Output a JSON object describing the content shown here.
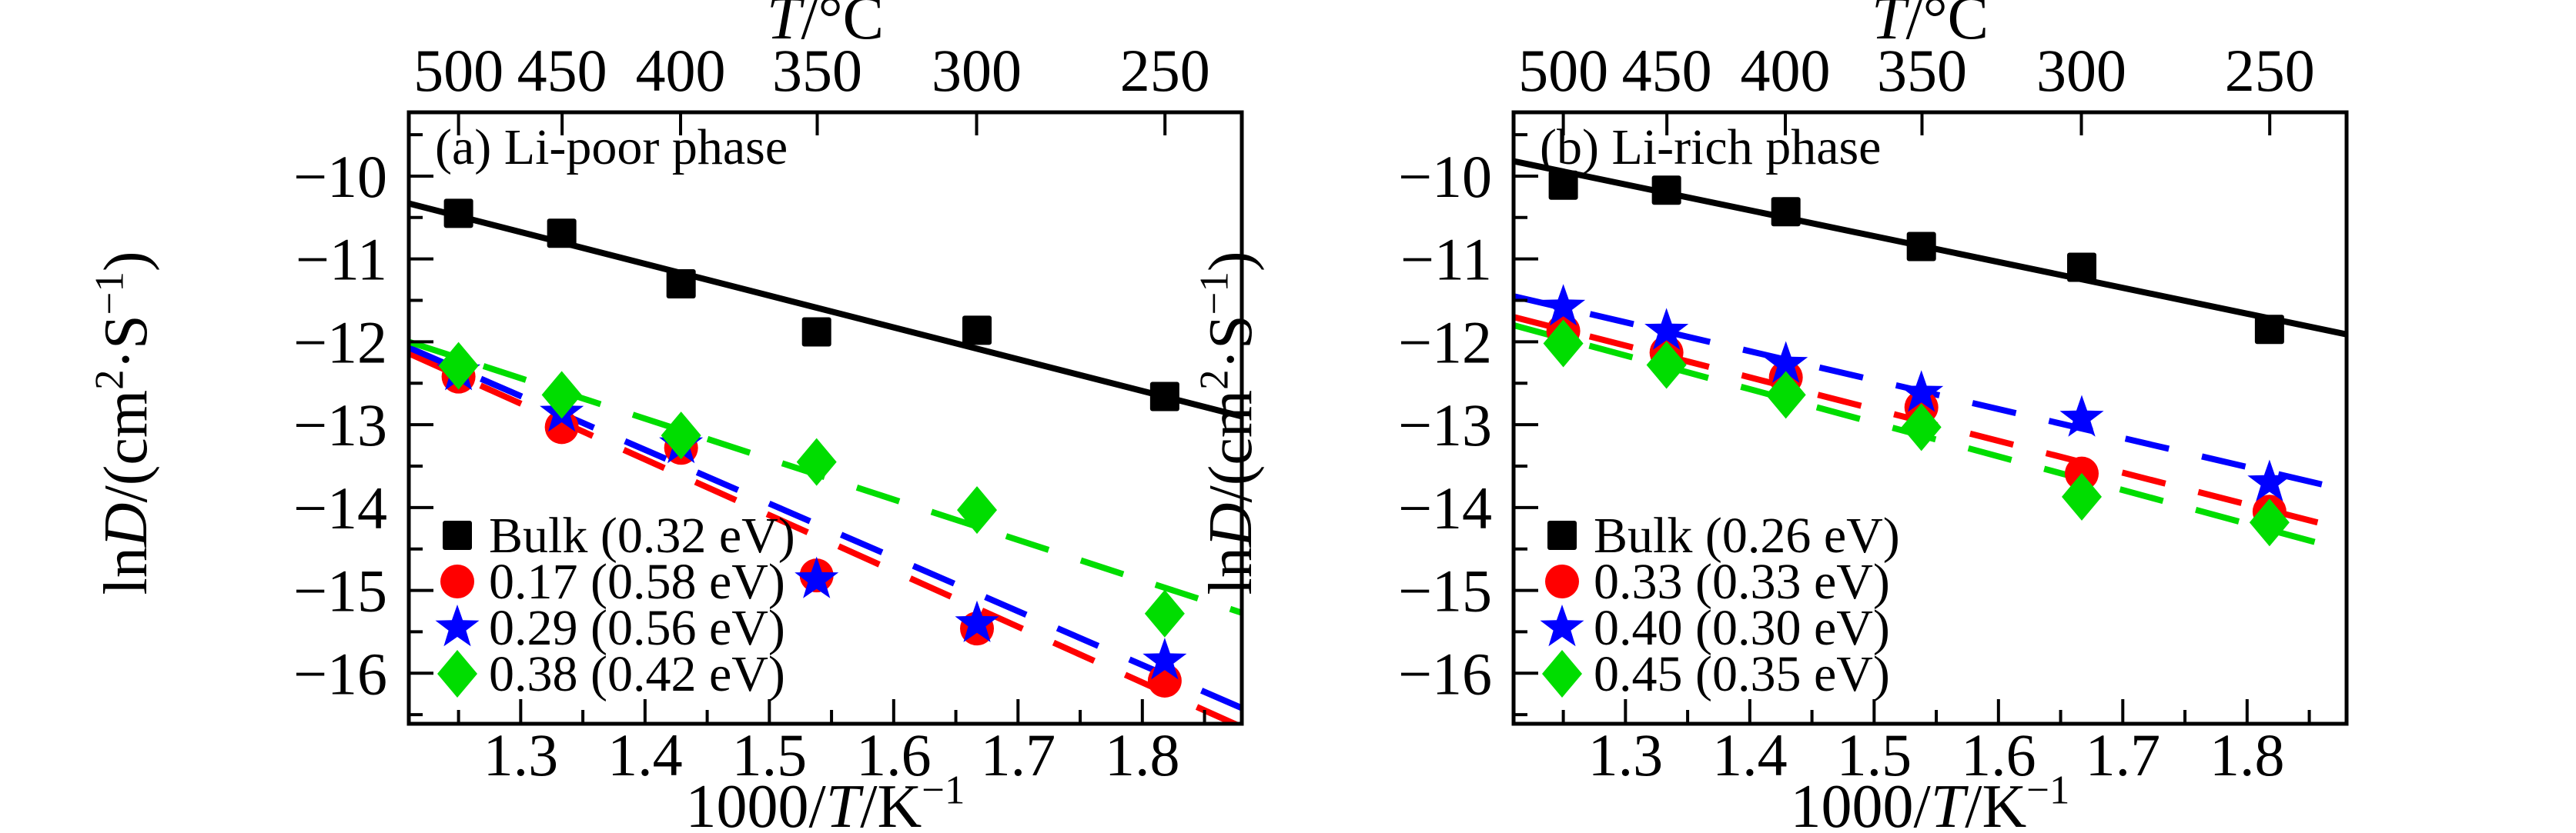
{
  "figure": {
    "description": "Arrhenius plots of Li diffusion coefficients",
    "background": "#ffffff",
    "frame_color": "#000000"
  },
  "axes": {
    "xlim": [
      1.21,
      1.88
    ],
    "ylim": [
      -16.61,
      -9.23
    ],
    "x_major": [
      {
        "v": 1.3,
        "label": "1.3"
      },
      {
        "v": 1.4,
        "label": "1.4"
      },
      {
        "v": 1.5,
        "label": "1.5"
      },
      {
        "v": 1.6,
        "label": "1.6"
      },
      {
        "v": 1.7,
        "label": "1.7"
      },
      {
        "v": 1.8,
        "label": "1.8"
      }
    ],
    "x_minor": [
      1.25,
      1.35,
      1.45,
      1.55,
      1.65,
      1.75,
      1.85
    ],
    "y_major": [
      {
        "v": -10,
        "label": "−10"
      },
      {
        "v": -11,
        "label": "−11"
      },
      {
        "v": -12,
        "label": "−12"
      },
      {
        "v": -13,
        "label": "−13"
      },
      {
        "v": -14,
        "label": "−14"
      },
      {
        "v": -15,
        "label": "−15"
      },
      {
        "v": -16,
        "label": "−16"
      }
    ],
    "y_minor": [
      -9.5,
      -10.5,
      -11.5,
      -12.5,
      -13.5,
      -14.5,
      -15.5,
      -16.5
    ],
    "top_ticks": [
      {
        "label": "500",
        "x": 1.25
      },
      {
        "label": "450",
        "x": 1.3333
      },
      {
        "label": "400",
        "x": 1.4286
      },
      {
        "label": "350",
        "x": 1.5385
      },
      {
        "label": "300",
        "x": 1.6667
      },
      {
        "label": "250",
        "x": 1.8182
      }
    ],
    "xlabel_segments": [
      {
        "t": "1000/"
      },
      {
        "t": "T",
        "i": 1
      },
      {
        "t": "/K"
      },
      {
        "t": "−1",
        "sup": 1
      }
    ],
    "ylabel_segments": [
      {
        "t": "ln"
      },
      {
        "t": "D",
        "i": 1
      },
      {
        "t": "/(cm"
      },
      {
        "t": "2",
        "sup": 1
      },
      {
        "t": "·S"
      },
      {
        "t": "−1",
        "sup": 1
      },
      {
        "t": ")"
      }
    ],
    "top_label_segments": [
      {
        "t": "T",
        "i": 1
      },
      {
        "t": "/°C"
      }
    ]
  },
  "chart_data": [
    {
      "type": "scatter",
      "panel_title": "(a) Li-poor phase",
      "x": [
        1.25,
        1.333,
        1.429,
        1.538,
        1.667,
        1.818
      ],
      "series": [
        {
          "name": "Bulk (0.32 eV)",
          "marker": "square",
          "color": "#000000",
          "line": "solid",
          "values": [
            -10.45,
            -10.69,
            -11.3,
            -11.88,
            -11.86,
            -12.66
          ],
          "fit": {
            "x1": 1.21,
            "y1": -10.33,
            "x2": 1.88,
            "y2": -12.9
          }
        },
        {
          "name": "0.17 (0.58 eV)",
          "marker": "circle",
          "color": "#ff0000",
          "line": "dashed",
          "values": [
            -12.42,
            -13.03,
            -13.28,
            -14.82,
            -15.46,
            -16.09
          ],
          "fit": {
            "x1": 1.21,
            "y1": -12.14,
            "x2": 1.88,
            "y2": -16.65
          }
        },
        {
          "name": "0.29 (0.56 eV)",
          "marker": "star",
          "color": "#0000ff",
          "line": "dashed",
          "values": [
            -12.36,
            -12.86,
            -13.24,
            -14.87,
            -15.4,
            -15.85
          ],
          "fit": {
            "x1": 1.21,
            "y1": -12.07,
            "x2": 1.88,
            "y2": -16.42
          }
        },
        {
          "name": "0.38 (0.42 eV)",
          "marker": "diamond",
          "color": "#00dd00",
          "line": "dashed",
          "values": [
            -12.29,
            -12.64,
            -13.13,
            -13.45,
            -14.03,
            -15.28
          ],
          "fit": {
            "x1": 1.21,
            "y1": -12.0,
            "x2": 1.88,
            "y2": -15.27
          }
        }
      ]
    },
    {
      "type": "scatter",
      "panel_title": "(b) Li-rich phase",
      "x": [
        1.25,
        1.333,
        1.429,
        1.538,
        1.667,
        1.818
      ],
      "series": [
        {
          "name": "Bulk (0.26 eV)",
          "marker": "square",
          "color": "#000000",
          "line": "solid",
          "values": [
            -10.11,
            -10.17,
            -10.43,
            -10.85,
            -11.1,
            -11.85
          ],
          "fit": {
            "x1": 1.21,
            "y1": -9.82,
            "x2": 1.88,
            "y2": -11.91
          }
        },
        {
          "name": "0.33 (0.33 eV)",
          "marker": "circle",
          "color": "#ff0000",
          "line": "dashed",
          "values": [
            -11.87,
            -12.13,
            -12.43,
            -12.79,
            -13.59,
            -14.05
          ],
          "fit": {
            "x1": 1.21,
            "y1": -11.7,
            "x2": 1.88,
            "y2": -14.27
          }
        },
        {
          "name": "0.40 (0.30 eV)",
          "marker": "star",
          "color": "#0000ff",
          "line": "dashed",
          "values": [
            -11.58,
            -11.87,
            -12.27,
            -12.62,
            -12.92,
            -13.7
          ],
          "fit": {
            "x1": 1.21,
            "y1": -11.45,
            "x2": 1.88,
            "y2": -13.79
          }
        },
        {
          "name": "0.45 (0.35 eV)",
          "marker": "diamond",
          "color": "#00dd00",
          "line": "dashed",
          "values": [
            -12.02,
            -12.28,
            -12.64,
            -13.03,
            -13.87,
            -14.18
          ],
          "fit": {
            "x1": 1.21,
            "y1": -11.8,
            "x2": 1.88,
            "y2": -14.52
          }
        }
      ]
    }
  ]
}
